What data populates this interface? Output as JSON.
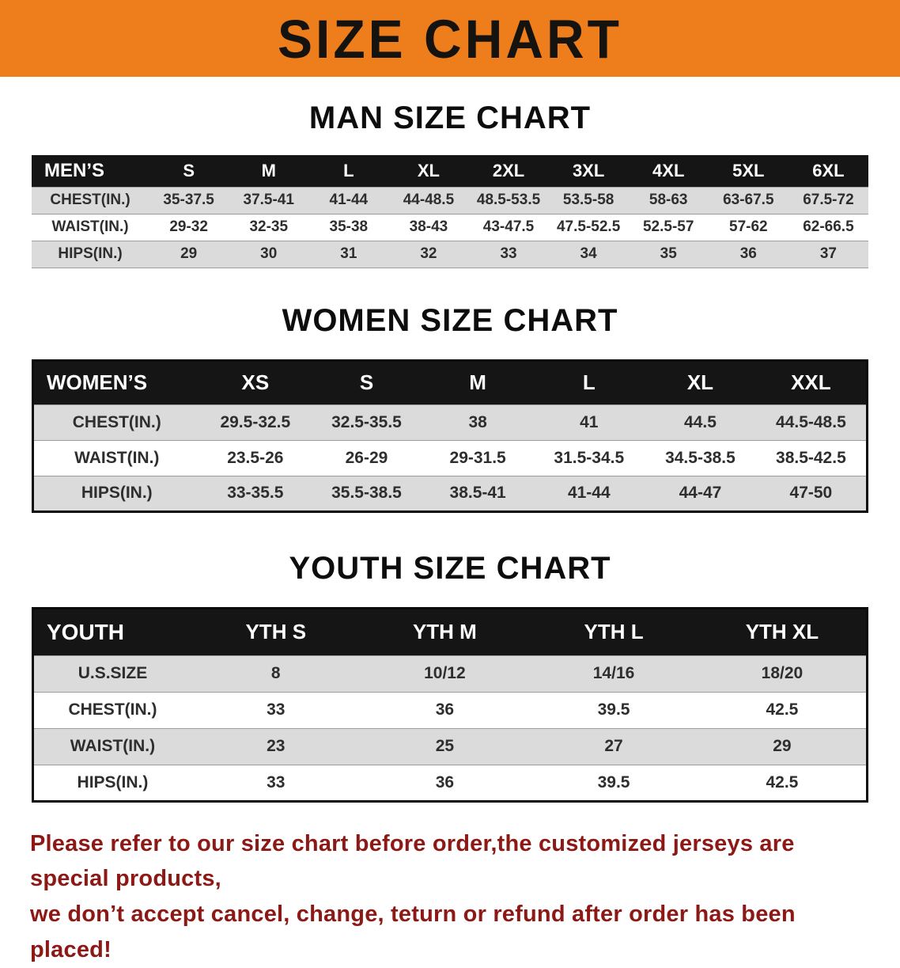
{
  "banner": {
    "title": "SIZE CHART"
  },
  "colors": {
    "banner_bg": "#EE7E1C",
    "banner_text": "#15130F",
    "table_header_bg": "#151515",
    "table_header_text": "#FFFFFF",
    "row_stripe": "#DBDBDB",
    "cell_text": "#2E2E2E",
    "disclaimer_text": "#8C1915"
  },
  "chart_data": [
    {
      "type": "table",
      "title": "MAN SIZE CHART",
      "columns": [
        "MEN’S",
        "S",
        "M",
        "L",
        "XL",
        "2XL",
        "3XL",
        "4XL",
        "5XL",
        "6XL"
      ],
      "rows": [
        [
          "CHEST(IN.)",
          "35-37.5",
          "37.5-41",
          "41-44",
          "44-48.5",
          "48.5-53.5",
          "53.5-58",
          "58-63",
          "63-67.5",
          "67.5-72"
        ],
        [
          "WAIST(IN.)",
          "29-32",
          "32-35",
          "35-38",
          "38-43",
          "43-47.5",
          "47.5-52.5",
          "52.5-57",
          "57-62",
          "62-66.5"
        ],
        [
          "HIPS(IN.)",
          "29",
          "30",
          "31",
          "32",
          "33",
          "34",
          "35",
          "36",
          "37"
        ]
      ]
    },
    {
      "type": "table",
      "title": "WOMEN SIZE CHART",
      "columns": [
        "WOMEN’S",
        "XS",
        "S",
        "M",
        "L",
        "XL",
        "XXL"
      ],
      "rows": [
        [
          "CHEST(IN.)",
          "29.5-32.5",
          "32.5-35.5",
          "38",
          "41",
          "44.5",
          "44.5-48.5"
        ],
        [
          "WAIST(IN.)",
          "23.5-26",
          "26-29",
          "29-31.5",
          "31.5-34.5",
          "34.5-38.5",
          "38.5-42.5"
        ],
        [
          "HIPS(IN.)",
          "33-35.5",
          "35.5-38.5",
          "38.5-41",
          "41-44",
          "44-47",
          "47-50"
        ]
      ]
    },
    {
      "type": "table",
      "title": "YOUTH SIZE CHART",
      "columns": [
        "YOUTH",
        "YTH S",
        "YTH M",
        "YTH L",
        "YTH XL"
      ],
      "rows": [
        [
          "U.S.SIZE",
          "8",
          "10/12",
          "14/16",
          "18/20"
        ],
        [
          "CHEST(IN.)",
          "33",
          "36",
          "39.5",
          "42.5"
        ],
        [
          "WAIST(IN.)",
          "23",
          "25",
          "27",
          "29"
        ],
        [
          "HIPS(IN.)",
          "33",
          "36",
          "39.5",
          "42.5"
        ]
      ]
    }
  ],
  "disclaimer": {
    "line1": "Please refer to our size chart before order,the customized jerseys are special products,",
    "line2": "we don’t accept cancel, change, teturn or refund after order has been placed!"
  }
}
